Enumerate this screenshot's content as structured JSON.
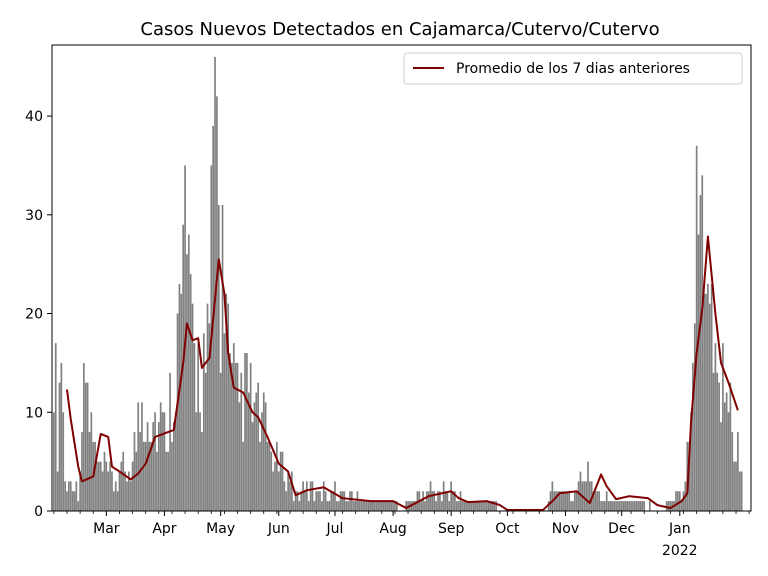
{
  "chart_data": {
    "type": "bar",
    "title": "Casos Nuevos Detectados en Cajamarca/Cutervo/Cutervo",
    "xlabel": "",
    "ylabel": "",
    "ylim": [
      0,
      47.2
    ],
    "xlim": [
      "2021-01-31",
      "2022-02-08"
    ],
    "yticks": [
      0,
      10,
      20,
      30,
      40
    ],
    "xticks": [
      {
        "date": "2021-03-01",
        "label": "Mar"
      },
      {
        "date": "2021-04-01",
        "label": "Apr"
      },
      {
        "date": "2021-05-01",
        "label": "May"
      },
      {
        "date": "2021-06-01",
        "label": "Jun"
      },
      {
        "date": "2021-07-01",
        "label": "Jul"
      },
      {
        "date": "2021-08-01",
        "label": "Aug"
      },
      {
        "date": "2021-09-01",
        "label": "Sep"
      },
      {
        "date": "2021-10-01",
        "label": "Oct"
      },
      {
        "date": "2021-11-01",
        "label": "Nov"
      },
      {
        "date": "2021-12-01",
        "label": "Dec"
      },
      {
        "date": "2022-01-01",
        "label": "Jan",
        "sublabel": "2022"
      }
    ],
    "grid": false,
    "legend_position": "top-right",
    "bar_color": "#808080",
    "series": [
      {
        "name": "Promedio de los 7 dias anteriores",
        "type": "line",
        "color": "#800000"
      }
    ],
    "daily_cases_keyframes": [
      [
        "2021-02-01",
        18
      ],
      [
        "2021-02-03",
        7
      ],
      [
        "2021-02-05",
        17
      ],
      [
        "2021-02-07",
        3
      ],
      [
        "2021-02-10",
        3
      ],
      [
        "2021-02-14",
        2
      ],
      [
        "2021-02-18",
        14
      ],
      [
        "2021-02-20",
        9
      ],
      [
        "2021-02-25",
        4
      ],
      [
        "2021-03-01",
        4
      ],
      [
        "2021-03-05",
        3
      ],
      [
        "2021-03-10",
        4
      ],
      [
        "2021-03-15",
        5
      ],
      [
        "2021-03-20",
        11
      ],
      [
        "2021-03-25",
        10
      ],
      [
        "2021-04-01",
        8
      ],
      [
        "2021-04-05",
        12
      ],
      [
        "2021-04-08",
        18
      ],
      [
        "2021-04-10",
        20
      ],
      [
        "2021-04-12",
        31
      ],
      [
        "2021-04-15",
        17
      ],
      [
        "2021-04-20",
        14
      ],
      [
        "2021-04-25",
        16
      ],
      [
        "2021-04-28",
        45
      ],
      [
        "2021-05-01",
        22
      ],
      [
        "2021-05-03",
        26
      ],
      [
        "2021-05-06",
        13
      ],
      [
        "2021-05-10",
        11
      ],
      [
        "2021-05-15",
        12
      ],
      [
        "2021-05-20",
        10
      ],
      [
        "2021-05-25",
        8
      ],
      [
        "2021-05-30",
        5
      ],
      [
        "2021-06-05",
        4
      ],
      [
        "2021-06-10",
        2
      ],
      [
        "2021-06-20",
        2
      ],
      [
        "2021-07-01",
        2
      ],
      [
        "2021-07-15",
        1
      ],
      [
        "2021-08-01",
        1
      ],
      [
        "2021-08-05",
        0
      ],
      [
        "2021-08-10",
        1
      ],
      [
        "2021-08-20",
        2
      ],
      [
        "2021-09-01",
        2
      ],
      [
        "2021-09-10",
        1
      ],
      [
        "2021-09-20",
        1
      ],
      [
        "2021-09-30",
        0
      ],
      [
        "2021-10-15",
        0
      ],
      [
        "2021-10-20",
        0
      ],
      [
        "2021-10-25",
        2
      ],
      [
        "2021-11-01",
        2
      ],
      [
        "2021-11-05",
        1
      ],
      [
        "2021-11-12",
        4
      ],
      [
        "2021-11-18",
        2
      ],
      [
        "2021-11-25",
        1
      ],
      [
        "2021-12-05",
        1
      ],
      [
        "2021-12-10",
        1
      ],
      [
        "2021-12-20",
        0
      ],
      [
        "2021-12-28",
        1
      ],
      [
        "2022-01-03",
        2
      ],
      [
        "2022-01-06",
        10
      ],
      [
        "2022-01-10",
        28
      ],
      [
        "2022-01-13",
        33
      ],
      [
        "2022-01-17",
        25
      ],
      [
        "2022-01-21",
        12
      ],
      [
        "2022-01-25",
        15
      ],
      [
        "2022-01-29",
        8
      ],
      [
        "2022-02-01",
        6
      ],
      [
        "2022-02-03",
        3
      ]
    ],
    "rolling_average_keyframes": [
      [
        "2021-02-08",
        12.3
      ],
      [
        "2021-02-10",
        9.3
      ],
      [
        "2021-02-14",
        4.5
      ],
      [
        "2021-02-16",
        3.0
      ],
      [
        "2021-02-22",
        3.5
      ],
      [
        "2021-02-26",
        7.8
      ],
      [
        "2021-03-02",
        7.5
      ],
      [
        "2021-03-04",
        4.5
      ],
      [
        "2021-03-08",
        4.0
      ],
      [
        "2021-03-14",
        3.2
      ],
      [
        "2021-03-18",
        3.8
      ],
      [
        "2021-03-22",
        4.8
      ],
      [
        "2021-03-27",
        7.5
      ],
      [
        "2021-04-03",
        8.0
      ],
      [
        "2021-04-06",
        8.2
      ],
      [
        "2021-04-11",
        15.0
      ],
      [
        "2021-04-13",
        19.0
      ],
      [
        "2021-04-16",
        17.3
      ],
      [
        "2021-04-19",
        17.5
      ],
      [
        "2021-04-21",
        14.5
      ],
      [
        "2021-04-25",
        15.5
      ],
      [
        "2021-04-30",
        25.5
      ],
      [
        "2021-05-03",
        22.0
      ],
      [
        "2021-05-05",
        16.0
      ],
      [
        "2021-05-08",
        12.5
      ],
      [
        "2021-05-13",
        12.0
      ],
      [
        "2021-05-18",
        10.0
      ],
      [
        "2021-05-21",
        9.5
      ],
      [
        "2021-05-26",
        7.5
      ],
      [
        "2021-06-01",
        4.8
      ],
      [
        "2021-06-06",
        4.0
      ],
      [
        "2021-06-10",
        1.6
      ],
      [
        "2021-06-16",
        2.1
      ],
      [
        "2021-06-25",
        2.4
      ],
      [
        "2021-07-05",
        1.3
      ],
      [
        "2021-07-20",
        1.0
      ],
      [
        "2021-08-01",
        1.0
      ],
      [
        "2021-08-08",
        0.3
      ],
      [
        "2021-08-20",
        1.5
      ],
      [
        "2021-09-01",
        2.0
      ],
      [
        "2021-09-05",
        1.3
      ],
      [
        "2021-09-10",
        0.9
      ],
      [
        "2021-09-20",
        1.0
      ],
      [
        "2021-09-27",
        0.6
      ],
      [
        "2021-10-01",
        0.1
      ],
      [
        "2021-10-20",
        0.1
      ],
      [
        "2021-10-25",
        1.0
      ],
      [
        "2021-10-29",
        1.8
      ],
      [
        "2021-11-07",
        2.0
      ],
      [
        "2021-11-14",
        0.8
      ],
      [
        "2021-11-20",
        3.7
      ],
      [
        "2021-11-23",
        2.5
      ],
      [
        "2021-11-28",
        1.2
      ],
      [
        "2021-12-05",
        1.5
      ],
      [
        "2021-12-15",
        1.3
      ],
      [
        "2021-12-20",
        0.6
      ],
      [
        "2021-12-27",
        0.3
      ],
      [
        "2022-01-02",
        1.0
      ],
      [
        "2022-01-05",
        1.8
      ],
      [
        "2022-01-07",
        9.0
      ],
      [
        "2022-01-10",
        16.0
      ],
      [
        "2022-01-13",
        20.5
      ],
      [
        "2022-01-16",
        27.8
      ],
      [
        "2022-01-20",
        20.0
      ],
      [
        "2022-01-23",
        15.0
      ],
      [
        "2022-01-27",
        13.0
      ],
      [
        "2022-02-01",
        10.2
      ]
    ]
  }
}
